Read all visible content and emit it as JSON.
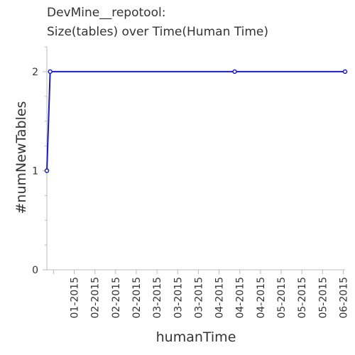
{
  "chart_data": {
    "type": "line",
    "title_lines": [
      "DevMine__repotool:",
      "Size(tables) over Time(Human Time)"
    ],
    "xlabel": "humanTime",
    "ylabel": "#numNewTables",
    "x_tick_labels": [
      "01-2015",
      "02-2015",
      "02-2015",
      "02-2015",
      "03-2015",
      "03-2015",
      "03-2015",
      "04-2015",
      "04-2015",
      "04-2015",
      "05-2015",
      "05-2015",
      "05-2015",
      "06-2015"
    ],
    "y_ticks": [
      0,
      1,
      2
    ],
    "ylim": [
      0,
      2.25
    ],
    "series": [
      {
        "color": "#1a1acc",
        "points": [
          {
            "x": "2014-12-22",
            "y": 1
          },
          {
            "x": "2014-12-24",
            "y": 2
          },
          {
            "x": "2015-04-15",
            "y": 2
          },
          {
            "x": "2015-06-21",
            "y": 2
          }
        ]
      }
    ],
    "x_range": [
      "2014-12-22",
      "2015-06-21"
    ],
    "grid": false
  }
}
